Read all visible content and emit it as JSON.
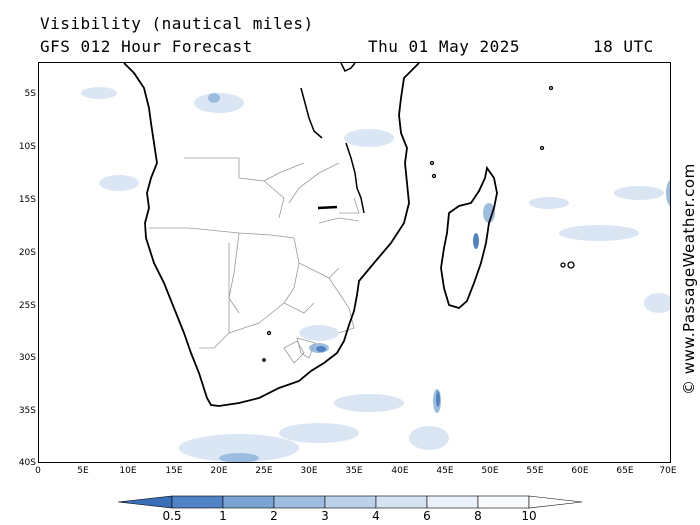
{
  "header": {
    "title": "Visibility (nautical miles)",
    "model": "GFS 012 Hour Forecast",
    "date": "Thu 01 May 2025",
    "time": "18 UTC"
  },
  "credit": "© www.PassageWeather.com",
  "axes": {
    "lat_labels": [
      "5S",
      "10S",
      "15S",
      "20S",
      "25S",
      "30S",
      "35S",
      "40S"
    ],
    "lon_labels": [
      "0",
      "5E",
      "10E",
      "15E",
      "20E",
      "25E",
      "30E",
      "35E",
      "40E",
      "45E",
      "50E",
      "55E",
      "60E",
      "65E",
      "70E"
    ],
    "lat_range": [
      -40,
      -2.5
    ],
    "lon_range": [
      0,
      70
    ]
  },
  "legend": {
    "labels": [
      "0.5",
      "1",
      "2",
      "3",
      "4",
      "6",
      "8",
      "10"
    ],
    "colors": [
      "#3a6fb8",
      "#5a8bc8",
      "#7ba3d4",
      "#9dbde0",
      "#bcd1ea",
      "#d6e3f3",
      "#eaf1fa",
      "#f8fbfe"
    ]
  },
  "colors": {
    "coast": "#000000",
    "border": "#9a9a9a",
    "haze_light": "#d6e3f3",
    "haze_mid": "#9dbde0",
    "haze_dark": "#4f83c4"
  }
}
